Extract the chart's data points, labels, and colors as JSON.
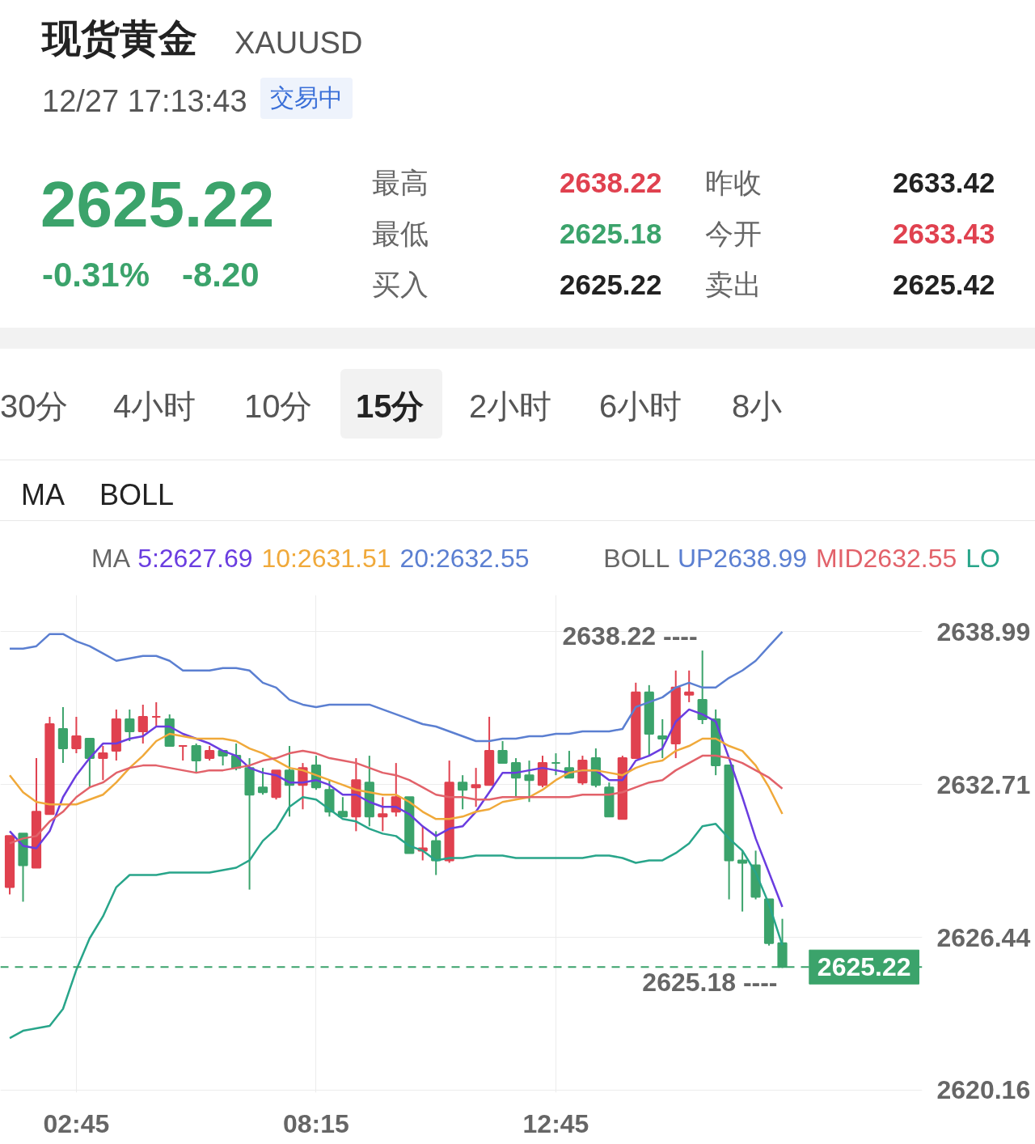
{
  "chart_data": {
    "type": "candlestick",
    "title": "现货黄金",
    "categories": [
      null,
      null,
      null,
      null,
      null,
      "02:45",
      null,
      null,
      null,
      null,
      null,
      null,
      null,
      null,
      null,
      null,
      null,
      null,
      null,
      null,
      null,
      null,
      null,
      "08:15",
      null,
      null,
      null,
      null,
      null,
      null,
      null,
      null,
      null,
      null,
      null,
      null,
      null,
      null,
      null,
      null,
      null,
      "12:45",
      null,
      null,
      null,
      null,
      null,
      null,
      null,
      null,
      null,
      null,
      null,
      null,
      null,
      null,
      null,
      null,
      null
    ],
    "ohlc": [
      [
        2628.5,
        2630.6,
        2628.2,
        2630.6
      ],
      [
        2630.7,
        2630.7,
        2627.9,
        2629.4
      ],
      [
        2629.3,
        2633.8,
        2629.3,
        2631.6
      ],
      [
        2631.5,
        2635.5,
        2631.5,
        2635.2
      ],
      [
        2635.0,
        2635.9,
        2633.6,
        2634.2
      ],
      [
        2634.2,
        2635.5,
        2634.0,
        2634.7
      ],
      [
        2634.6,
        2634.6,
        2632.6,
        2633.8
      ],
      [
        2633.8,
        2634.3,
        2632.9,
        2634.0
      ],
      [
        2634.1,
        2635.8,
        2633.7,
        2635.4
      ],
      [
        2635.4,
        2635.8,
        2634.5,
        2634.9
      ],
      [
        2634.9,
        2636.0,
        2634.4,
        2635.5
      ],
      [
        2635.5,
        2636.1,
        2635.1,
        2635.5
      ],
      [
        2635.4,
        2635.6,
        2634.3,
        2634.3
      ],
      [
        2634.3,
        2634.3,
        2633.7,
        2634.3
      ],
      [
        2634.3,
        2634.4,
        2633.2,
        2633.7
      ],
      [
        2633.8,
        2634.3,
        2633.7,
        2634.1
      ],
      [
        2634.1,
        2634.1,
        2633.5,
        2633.9
      ],
      [
        2633.9,
        2634.4,
        2633.3,
        2633.4
      ],
      [
        2633.4,
        2633.8,
        2628.4,
        2632.3
      ],
      [
        2632.6,
        2633.4,
        2632.3,
        2632.4
      ],
      [
        2632.2,
        2633.3,
        2632.1,
        2633.3
      ],
      [
        2633.3,
        2634.3,
        2631.4,
        2632.7
      ],
      [
        2632.7,
        2633.6,
        2631.7,
        2633.4
      ],
      [
        2633.5,
        2633.9,
        2632.5,
        2632.6
      ],
      [
        2632.5,
        2632.9,
        2631.4,
        2631.6
      ],
      [
        2631.6,
        2632.2,
        2631.4,
        2631.4
      ],
      [
        2631.4,
        2633.8,
        2630.8,
        2632.9
      ],
      [
        2632.8,
        2633.9,
        2631.0,
        2631.4
      ],
      [
        2631.4,
        2632.2,
        2630.8,
        2631.5
      ],
      [
        2631.6,
        2633.6,
        2631.4,
        2632.2
      ],
      [
        2632.2,
        2632.2,
        2629.9,
        2629.9
      ],
      [
        2630.0,
        2631.0,
        2629.6,
        2630.1
      ],
      [
        2630.4,
        2630.8,
        2629.0,
        2629.6
      ],
      [
        2629.6,
        2633.7,
        2629.5,
        2632.8
      ],
      [
        2632.8,
        2633.1,
        2631.7,
        2632.5
      ],
      [
        2632.6,
        2633.4,
        2631.8,
        2632.7
      ],
      [
        2632.7,
        2635.5,
        2632.7,
        2634.1
      ],
      [
        2634.1,
        2634.5,
        2633.6,
        2633.6
      ],
      [
        2633.6,
        2633.8,
        2632.2,
        2633.0
      ],
      [
        2633.1,
        2633.7,
        2632.0,
        2632.9
      ],
      [
        2632.7,
        2633.9,
        2632.6,
        2633.6
      ],
      [
        2633.6,
        2634.0,
        2633.1,
        2633.6
      ],
      [
        2633.4,
        2634.1,
        2633.0,
        2633.0
      ],
      [
        2632.8,
        2633.9,
        2632.7,
        2633.7
      ],
      [
        2633.8,
        2634.2,
        2632.6,
        2632.7
      ],
      [
        2632.6,
        2632.8,
        2631.4,
        2631.4
      ],
      [
        2631.3,
        2633.9,
        2631.3,
        2633.8
      ],
      [
        2633.8,
        2636.9,
        2633.8,
        2636.5
      ],
      [
        2636.5,
        2636.8,
        2633.9,
        2634.8
      ],
      [
        2634.7,
        2635.4,
        2633.8,
        2634.6
      ],
      [
        2634.4,
        2637.4,
        2633.8,
        2636.7
      ],
      [
        2636.4,
        2637.4,
        2636.1,
        2636.5
      ],
      [
        2636.2,
        2638.22,
        2635.2,
        2635.4
      ],
      [
        2635.4,
        2635.8,
        2633.1,
        2633.5
      ],
      [
        2633.5,
        2633.5,
        2628.0,
        2629.6
      ],
      [
        2629.6,
        2630.0,
        2627.5,
        2629.5
      ],
      [
        2629.4,
        2630.0,
        2628.0,
        2628.1
      ],
      [
        2628.0,
        2628.0,
        2626.1,
        2626.2
      ],
      [
        2626.2,
        2627.2,
        2625.18,
        2625.22
      ]
    ],
    "colors": [
      "#e0414f",
      "#3ba36b",
      "#e0414f",
      "#e0414f",
      "#3ba36b",
      "#e0414f",
      "#3ba36b",
      "#e0414f",
      "#e0414f",
      "#3ba36b",
      "#e0414f",
      "#e0414f",
      "#3ba36b",
      "#e0414f",
      "#3ba36b",
      "#e0414f",
      "#3ba36b",
      "#3ba36b",
      "#3ba36b",
      "#3ba36b",
      "#e0414f",
      "#3ba36b",
      "#e0414f",
      "#3ba36b",
      "#3ba36b",
      "#3ba36b",
      "#e0414f",
      "#3ba36b",
      "#e0414f",
      "#e0414f",
      "#3ba36b",
      "#e0414f",
      "#3ba36b",
      "#e0414f",
      "#3ba36b",
      "#e0414f",
      "#e0414f",
      "#3ba36b",
      "#3ba36b",
      "#3ba36b",
      "#e0414f",
      "#3ba36b",
      "#3ba36b",
      "#e0414f",
      "#3ba36b",
      "#3ba36b",
      "#e0414f",
      "#e0414f",
      "#3ba36b",
      "#3ba36b",
      "#e0414f",
      "#e0414f",
      "#3ba36b",
      "#3ba36b",
      "#3ba36b",
      "#3ba36b",
      "#3ba36b",
      "#3ba36b",
      "#3ba36b"
    ],
    "series": [
      {
        "type": "line",
        "name": "5:2627.69",
        "color": "#6a3de0",
        "values": [
          2630.8,
          2630.2,
          2630.1,
          2630.8,
          2632.2,
          2633.1,
          2633.8,
          2634.4,
          2634.4,
          2634.6,
          2634.7,
          2635.1,
          2635.1,
          2634.8,
          2634.6,
          2634.4,
          2634.1,
          2633.9,
          2633.4,
          2633.2,
          2633.1,
          2632.8,
          2632.8,
          2632.9,
          2632.7,
          2632.3,
          2632.3,
          2632.0,
          2631.8,
          2631.8,
          2631.5,
          2631.0,
          2630.6,
          2630.9,
          2631.0,
          2631.6,
          2632.4,
          2633.2,
          2633.2,
          2633.3,
          2633.4,
          2633.3,
          2633.2,
          2633.3,
          2633.3,
          2632.9,
          2632.9,
          2633.7,
          2633.9,
          2634.2,
          2635.3,
          2635.8,
          2635.6,
          2635.3,
          2633.8,
          2632.2,
          2630.5,
          2629.1,
          2627.69
        ]
      },
      {
        "type": "line",
        "name": "10:2631.51",
        "color": "#f0a93a",
        "values": [
          2633.1,
          2632.4,
          2632.0,
          2631.9,
          2631.9,
          2631.9,
          2632.1,
          2632.3,
          2632.8,
          2633.4,
          2633.9,
          2634.5,
          2634.8,
          2634.7,
          2634.6,
          2634.6,
          2634.6,
          2634.5,
          2634.2,
          2634.0,
          2633.7,
          2633.4,
          2633.3,
          2633.1,
          2632.9,
          2632.7,
          2632.5,
          2632.4,
          2632.3,
          2632.3,
          2632.0,
          2631.6,
          2631.3,
          2631.3,
          2631.4,
          2631.6,
          2631.7,
          2632.0,
          2632.1,
          2632.2,
          2632.5,
          2632.9,
          2633.2,
          2633.3,
          2633.3,
          2633.2,
          2633.1,
          2633.4,
          2633.6,
          2633.7,
          2634.1,
          2634.3,
          2634.6,
          2634.6,
          2634.3,
          2634.1,
          2633.5,
          2632.6,
          2631.51
        ]
      },
      {
        "type": "line",
        "name": "UP2638.99",
        "color": "#5b7fd1",
        "values": [
          2638.3,
          2638.3,
          2638.4,
          2638.9,
          2638.9,
          2638.6,
          2638.4,
          2638.1,
          2637.8,
          2637.9,
          2638.0,
          2638.0,
          2637.8,
          2637.4,
          2637.4,
          2637.4,
          2637.5,
          2637.5,
          2637.4,
          2636.9,
          2636.7,
          2636.2,
          2636.0,
          2635.9,
          2636.0,
          2636.0,
          2636.0,
          2636.0,
          2635.8,
          2635.6,
          2635.4,
          2635.2,
          2635.1,
          2634.9,
          2634.7,
          2634.5,
          2634.5,
          2634.6,
          2634.6,
          2634.7,
          2634.7,
          2634.8,
          2634.8,
          2634.9,
          2634.9,
          2634.9,
          2635.0,
          2635.9,
          2636.1,
          2636.3,
          2636.7,
          2636.9,
          2636.7,
          2636.7,
          2637.1,
          2637.4,
          2637.8,
          2638.4,
          2638.99
        ]
      },
      {
        "type": "line",
        "name": "MID2632.55",
        "color": "#e2626a",
        "values": [
          2630.3,
          2630.5,
          2630.6,
          2631.2,
          2631.6,
          2632.2,
          2632.6,
          2632.8,
          2633.2,
          2633.4,
          2633.5,
          2633.5,
          2633.4,
          2633.3,
          2633.2,
          2633.3,
          2633.3,
          2633.4,
          2633.5,
          2633.7,
          2633.8,
          2634.0,
          2634.1,
          2634.0,
          2633.8,
          2633.7,
          2633.6,
          2633.4,
          2633.2,
          2633.1,
          2632.9,
          2632.6,
          2632.3,
          2632.2,
          2632.2,
          2632.1,
          2632.1,
          2632.2,
          2632.2,
          2632.2,
          2632.2,
          2632.2,
          2632.2,
          2632.3,
          2632.3,
          2632.3,
          2632.4,
          2632.6,
          2632.8,
          2632.9,
          2633.3,
          2633.6,
          2633.9,
          2633.9,
          2633.8,
          2633.6,
          2633.3,
          2633.0,
          2632.55
        ]
      },
      {
        "type": "line",
        "name": "LO",
        "color": "#28a58a",
        "values": [
          2622.3,
          2622.6,
          2622.7,
          2622.8,
          2623.5,
          2625.1,
          2626.4,
          2627.3,
          2628.5,
          2629.0,
          2629.0,
          2629.0,
          2629.1,
          2629.1,
          2629.1,
          2629.1,
          2629.2,
          2629.3,
          2629.6,
          2630.4,
          2630.9,
          2631.8,
          2632.2,
          2632.1,
          2631.7,
          2631.3,
          2631.2,
          2630.9,
          2630.7,
          2630.6,
          2630.2,
          2630.0,
          2629.6,
          2629.7,
          2629.7,
          2629.8,
          2629.8,
          2629.8,
          2629.7,
          2629.7,
          2629.7,
          2629.7,
          2629.7,
          2629.7,
          2629.8,
          2629.8,
          2629.7,
          2629.5,
          2629.6,
          2629.6,
          2629.9,
          2630.3,
          2631.0,
          2631.1,
          2630.5,
          2630.0,
          2629.1,
          2627.8,
          2626.11
        ]
      }
    ],
    "ylim": [
      2620.06,
      2640.5
    ],
    "yticks": [
      2638.99,
      2632.71,
      2626.44,
      2620.16
    ],
    "grid": true,
    "legend": "top",
    "ref_lines": [
      {
        "axis": "y",
        "value": 2625.22,
        "label": "2625.22",
        "color": "#3ba36b",
        "line_style": "dashed"
      }
    ],
    "annotations": [
      "XAUUSD",
      "12/27 17:13:43",
      "交易中",
      "2625.22",
      "-0.31%",
      "-8.20",
      "最高",
      "2638.22",
      "昨收",
      "2633.42",
      "最低",
      "2625.18",
      "今开",
      "2633.43",
      "买入",
      "2625.22",
      "卖出",
      "2625.42",
      "30分",
      "4小时",
      "10分",
      "15分",
      "2小时",
      "6小时",
      "8小",
      "MA",
      "BOLL",
      "MA",
      "20:2632.55",
      "BOLL",
      "2638.22 ----",
      "2625.18 ----"
    ]
  }
}
